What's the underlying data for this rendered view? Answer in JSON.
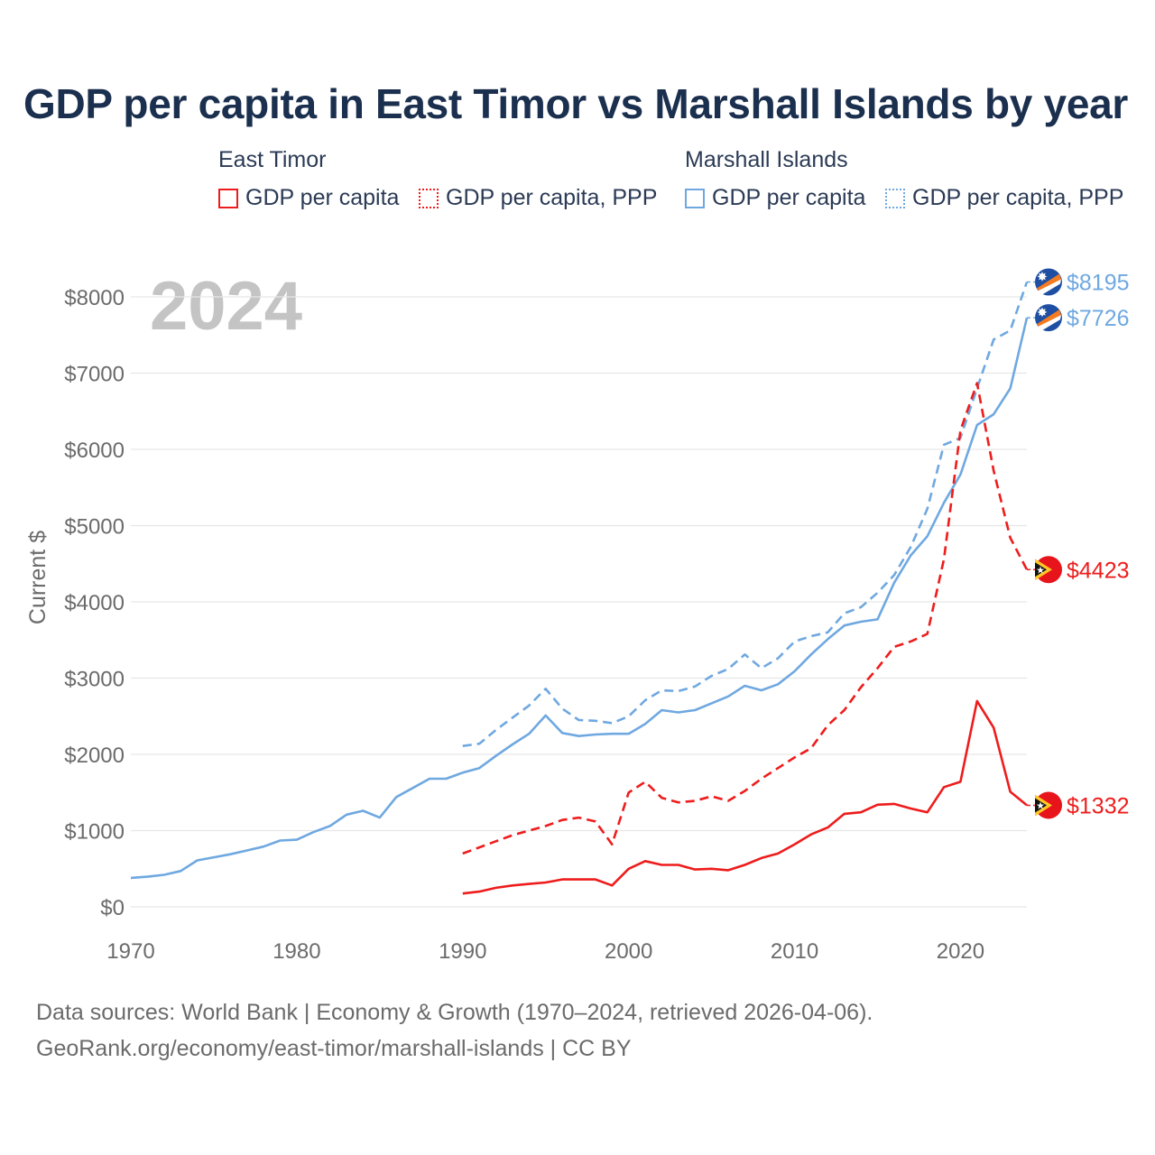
{
  "chart_data": {
    "type": "line",
    "title": "GDP per capita in East Timor vs Marshall Islands by year",
    "ylabel": "Current $",
    "xlabel": "",
    "year_label": "2024",
    "xlim": [
      1970,
      2024
    ],
    "ylim": [
      0,
      8000
    ],
    "x_ticks": [
      1970,
      1980,
      1990,
      2000,
      2010,
      2020
    ],
    "x_tick_labels": [
      "1970",
      "1980",
      "1990",
      "2000",
      "2010",
      "2020"
    ],
    "y_ticks": [
      0,
      1000,
      2000,
      3000,
      4000,
      5000,
      6000,
      7000,
      8000
    ],
    "y_tick_labels": [
      "$0",
      "$1000",
      "$2000",
      "$3000",
      "$4000",
      "$5000",
      "$6000",
      "$7000",
      "$8000"
    ],
    "legend": {
      "groups": [
        {
          "name": "East Timor",
          "items": [
            "GDP per capita",
            "GDP per capita, PPP"
          ]
        },
        {
          "name": "Marshall Islands",
          "items": [
            "GDP per capita",
            "GDP per capita, PPP"
          ]
        }
      ]
    },
    "colors": {
      "east_timor": "#ee1c1c",
      "marshall": "#6fa8e0",
      "title": "#1b2f4e",
      "axis_text": "#6b6b6b",
      "grid": "#e6e6e6",
      "watermark": "#c4c4c4"
    },
    "series": [
      {
        "id": "mh-ppp",
        "name": "Marshall Islands GDP per capita, PPP",
        "color": "#6fa8e0",
        "dash": true,
        "x": [
          1990,
          1991,
          1992,
          1993,
          1994,
          1995,
          1996,
          1997,
          1998,
          1999,
          2000,
          2001,
          2002,
          2003,
          2004,
          2005,
          2006,
          2007,
          2008,
          2009,
          2010,
          2011,
          2012,
          2013,
          2014,
          2015,
          2016,
          2017,
          2018,
          2019,
          2020,
          2021,
          2022,
          2023,
          2024
        ],
        "values": [
          2110,
          2140,
          2320,
          2480,
          2640,
          2860,
          2600,
          2450,
          2440,
          2410,
          2500,
          2710,
          2840,
          2830,
          2890,
          3030,
          3120,
          3310,
          3130,
          3260,
          3480,
          3550,
          3600,
          3850,
          3930,
          4120,
          4350,
          4720,
          5220,
          6060,
          6150,
          6800,
          7440,
          7560,
          8195
        ],
        "end_label": "$8195"
      },
      {
        "id": "mh-gdp",
        "name": "Marshall Islands GDP per capita",
        "color": "#6fa8e0",
        "dash": false,
        "x": [
          1970,
          1971,
          1972,
          1973,
          1974,
          1975,
          1976,
          1977,
          1978,
          1979,
          1980,
          1981,
          1982,
          1983,
          1984,
          1985,
          1986,
          1987,
          1988,
          1989,
          1990,
          1991,
          1992,
          1993,
          1994,
          1995,
          1996,
          1997,
          1998,
          1999,
          2000,
          2001,
          2002,
          2003,
          2004,
          2005,
          2006,
          2007,
          2008,
          2009,
          2010,
          2011,
          2012,
          2013,
          2014,
          2015,
          2016,
          2017,
          2018,
          2019,
          2020,
          2021,
          2022,
          2023,
          2024
        ],
        "values": [
          380,
          395,
          420,
          470,
          610,
          650,
          690,
          740,
          790,
          870,
          880,
          980,
          1060,
          1210,
          1260,
          1170,
          1440,
          1560,
          1680,
          1680,
          1760,
          1820,
          1980,
          2130,
          2270,
          2510,
          2280,
          2240,
          2260,
          2270,
          2270,
          2400,
          2580,
          2550,
          2580,
          2670,
          2760,
          2900,
          2840,
          2920,
          3090,
          3310,
          3510,
          3690,
          3740,
          3770,
          4250,
          4610,
          4860,
          5300,
          5670,
          6320,
          6460,
          6800,
          7726
        ],
        "end_label": "$7726"
      },
      {
        "id": "tl-ppp",
        "name": "East Timor GDP per capita, PPP",
        "color": "#ee1c1c",
        "dash": true,
        "x": [
          1990,
          1991,
          1992,
          1993,
          1994,
          1995,
          1996,
          1997,
          1998,
          1999,
          2000,
          2001,
          2002,
          2003,
          2004,
          2005,
          2006,
          2007,
          2008,
          2009,
          2010,
          2011,
          2012,
          2013,
          2014,
          2015,
          2016,
          2017,
          2018,
          2019,
          2020,
          2021,
          2022,
          2023,
          2024
        ],
        "values": [
          700,
          780,
          860,
          940,
          1000,
          1060,
          1140,
          1170,
          1120,
          820,
          1500,
          1640,
          1430,
          1370,
          1390,
          1450,
          1390,
          1520,
          1680,
          1820,
          1960,
          2080,
          2380,
          2580,
          2880,
          3130,
          3410,
          3480,
          3580,
          4560,
          6250,
          6870,
          5720,
          4840,
          4423
        ],
        "end_label": "$4423"
      },
      {
        "id": "tl-gdp",
        "name": "East Timor GDP per capita",
        "color": "#ee1c1c",
        "dash": false,
        "x": [
          1990,
          1991,
          1992,
          1993,
          1994,
          1995,
          1996,
          1997,
          1998,
          1999,
          2000,
          2001,
          2002,
          2003,
          2004,
          2005,
          2006,
          2007,
          2008,
          2009,
          2010,
          2011,
          2012,
          2013,
          2014,
          2015,
          2016,
          2017,
          2018,
          2019,
          2020,
          2021,
          2022,
          2023,
          2024
        ],
        "values": [
          175,
          200,
          250,
          280,
          300,
          320,
          360,
          360,
          360,
          280,
          500,
          600,
          550,
          550,
          490,
          500,
          480,
          550,
          640,
          700,
          820,
          950,
          1040,
          1220,
          1240,
          1340,
          1350,
          1290,
          1240,
          1570,
          1640,
          2700,
          2350,
          1510,
          1332
        ],
        "end_label": "$1332"
      }
    ]
  },
  "footer": {
    "line1": "Data sources: World Bank | Economy & Growth (1970–2024, retrieved 2026-04-06).",
    "line2": "GeoRank.org/economy/east-timor/marshall-islands | CC BY"
  }
}
